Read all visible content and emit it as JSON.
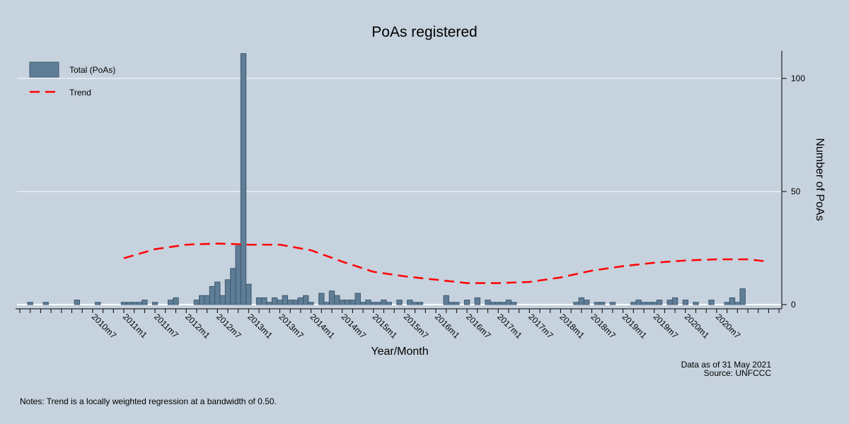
{
  "chart_data": {
    "type": "bar",
    "title": "PoAs registered",
    "xlabel": "Year/Month",
    "ylabel": "Number of PoAs",
    "ylim": [
      0,
      112
    ],
    "y_ticks": [
      0,
      50,
      100
    ],
    "y_axis_side": "right",
    "grid": true,
    "x_range": [
      "2009m5",
      "2021m7"
    ],
    "x_tick_labels": [
      "2010m7",
      "2011m1",
      "2011m7",
      "2012m1",
      "2012m7",
      "2013m1",
      "2013m7",
      "2014m1",
      "2014m7",
      "2015m1",
      "2015m7",
      "2016m1",
      "2016m7",
      "2017m1",
      "2017m7",
      "2018m1",
      "2018m7",
      "2019m1",
      "2019m7",
      "2020m1",
      "2020m7"
    ],
    "legend": {
      "placement": "top-left",
      "entries": [
        "Total (PoAs)",
        "Trend"
      ]
    },
    "colors": {
      "bar_fill": "#5f7d95",
      "bar_stroke": "#3d5a73",
      "trend": "#ff0000",
      "background": "#c6d2de",
      "grid": "#ffffff"
    },
    "series": [
      {
        "name": "Total (PoAs)",
        "type": "bar",
        "points": [
          [
            "2009m7",
            1
          ],
          [
            "2009m10",
            1
          ],
          [
            "2010m4",
            2
          ],
          [
            "2010m8",
            1
          ],
          [
            "2011m1",
            1
          ],
          [
            "2011m2",
            1
          ],
          [
            "2011m3",
            1
          ],
          [
            "2011m4",
            1
          ],
          [
            "2011m5",
            2
          ],
          [
            "2011m7",
            1
          ],
          [
            "2011m10",
            2
          ],
          [
            "2011m11",
            3
          ],
          [
            "2012m3",
            2
          ],
          [
            "2012m4",
            4
          ],
          [
            "2012m5",
            4
          ],
          [
            "2012m6",
            8
          ],
          [
            "2012m7",
            10
          ],
          [
            "2012m8",
            4
          ],
          [
            "2012m9",
            11
          ],
          [
            "2012m10",
            16
          ],
          [
            "2012m11",
            26
          ],
          [
            "2012m12",
            111
          ],
          [
            "2013m1",
            9
          ],
          [
            "2013m3",
            3
          ],
          [
            "2013m4",
            3
          ],
          [
            "2013m5",
            1
          ],
          [
            "2013m6",
            3
          ],
          [
            "2013m7",
            2
          ],
          [
            "2013m8",
            4
          ],
          [
            "2013m9",
            2
          ],
          [
            "2013m10",
            2
          ],
          [
            "2013m11",
            3
          ],
          [
            "2013m12",
            4
          ],
          [
            "2014m1",
            1
          ],
          [
            "2014m3",
            5
          ],
          [
            "2014m4",
            1
          ],
          [
            "2014m5",
            6
          ],
          [
            "2014m6",
            4
          ],
          [
            "2014m7",
            2
          ],
          [
            "2014m8",
            2
          ],
          [
            "2014m9",
            2
          ],
          [
            "2014m10",
            5
          ],
          [
            "2014m11",
            1
          ],
          [
            "2014m12",
            2
          ],
          [
            "2015m1",
            1
          ],
          [
            "2015m2",
            1
          ],
          [
            "2015m3",
            2
          ],
          [
            "2015m4",
            1
          ],
          [
            "2015m6",
            2
          ],
          [
            "2015m8",
            2
          ],
          [
            "2015m9",
            1
          ],
          [
            "2015m10",
            1
          ],
          [
            "2016m3",
            4
          ],
          [
            "2016m4",
            1
          ],
          [
            "2016m5",
            1
          ],
          [
            "2016m7",
            2
          ],
          [
            "2016m9",
            3
          ],
          [
            "2016m11",
            2
          ],
          [
            "2016m12",
            1
          ],
          [
            "2017m1",
            1
          ],
          [
            "2017m2",
            1
          ],
          [
            "2017m3",
            2
          ],
          [
            "2017m4",
            1
          ],
          [
            "2018m4",
            1
          ],
          [
            "2018m5",
            3
          ],
          [
            "2018m6",
            2
          ],
          [
            "2018m8",
            1
          ],
          [
            "2018m9",
            1
          ],
          [
            "2018m11",
            1
          ],
          [
            "2019m3",
            1
          ],
          [
            "2019m4",
            2
          ],
          [
            "2019m5",
            1
          ],
          [
            "2019m6",
            1
          ],
          [
            "2019m7",
            1
          ],
          [
            "2019m8",
            2
          ],
          [
            "2019m10",
            2
          ],
          [
            "2019m11",
            3
          ],
          [
            "2020m1",
            2
          ],
          [
            "2020m3",
            1
          ],
          [
            "2020m6",
            2
          ],
          [
            "2020m9",
            1
          ],
          [
            "2020m10",
            3
          ],
          [
            "2020m11",
            1
          ],
          [
            "2020m12",
            7
          ]
        ]
      },
      {
        "name": "Trend",
        "type": "line",
        "points": [
          [
            "2011m1",
            20.5
          ],
          [
            "2011m7",
            24.5
          ],
          [
            "2012m1",
            26.5
          ],
          [
            "2012m7",
            27
          ],
          [
            "2013m1",
            26.5
          ],
          [
            "2013m7",
            26.5
          ],
          [
            "2014m1",
            24
          ],
          [
            "2014m7",
            19
          ],
          [
            "2015m1",
            14.5
          ],
          [
            "2015m7",
            12.5
          ],
          [
            "2016m1",
            11
          ],
          [
            "2016m7",
            9.5
          ],
          [
            "2017m1",
            9.5
          ],
          [
            "2017m7",
            10
          ],
          [
            "2018m1",
            12
          ],
          [
            "2018m7",
            15
          ],
          [
            "2019m1",
            17
          ],
          [
            "2019m7",
            18.5
          ],
          [
            "2020m1",
            19.5
          ],
          [
            "2020m7",
            20
          ],
          [
            "2021m1",
            20
          ],
          [
            "2021m5",
            19
          ]
        ]
      }
    ]
  },
  "notes": {
    "data_as_of": "Data as of 31 May 2021",
    "source": "Source: UNFCCC",
    "footnote": "Notes: Trend is a locally weighted regression at a bandwidth of 0.50."
  }
}
